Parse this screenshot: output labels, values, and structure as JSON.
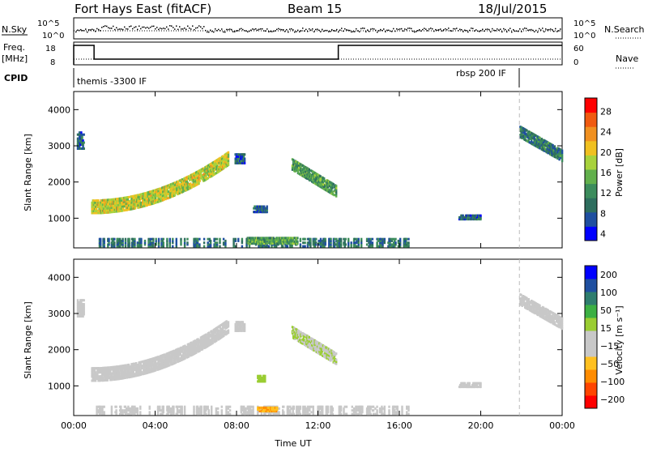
{
  "header": {
    "radar": "Fort Hays East (fitACF)",
    "beam": "Beam 15",
    "date": "18/Jul/2015"
  },
  "summary": {
    "nsky_label": "N.Sky",
    "nsearch_label": "N.Search",
    "freq_label_1": "Freq.",
    "freq_label_2": "[MHz]",
    "nave_label": "Nave",
    "cpid_label": "CPID",
    "noise_ticks": [
      "10^5",
      "10^0"
    ],
    "noise_right_ticks": [
      "10^5",
      "10^0"
    ],
    "freq_ticks": [
      "18",
      "8"
    ],
    "nave_ticks": [
      "60",
      "0"
    ],
    "cpid_segments": [
      {
        "label": "themis -3300 IF",
        "start": 0.0,
        "end": 21.9
      },
      {
        "label": "rbsp 200 IF",
        "start": 21.9,
        "end": 24.0
      }
    ]
  },
  "colors": {
    "power_scale": [
      "#0000ff",
      "#1f4fa0",
      "#2e6e5e",
      "#3c8c5c",
      "#62b04c",
      "#a8d23c",
      "#f0c020",
      "#f09020",
      "#f05a10",
      "#ff0000"
    ],
    "velocity_scale": [
      "#ff0000",
      "#ff4500",
      "#ff8c00",
      "#ffc020",
      "#c8c8c8",
      "#c8c8c8",
      "#9acd32",
      "#3cb043",
      "#2e7d6e",
      "#1f4fa0",
      "#0000ff"
    ]
  },
  "chart_data": [
    {
      "type": "heatmap",
      "name": "power",
      "ylabel": "Slant Range [km]",
      "xlabel": "",
      "colorbar_label": "Power [dB]",
      "colorbar_ticks": [
        "28",
        "24",
        "20",
        "16",
        "12",
        "8",
        "4"
      ],
      "yticks": [
        "4000",
        "3000",
        "2000",
        "1000"
      ],
      "ylim": [
        180,
        4500
      ],
      "xlim": [
        0,
        24
      ],
      "clim": [
        0,
        31
      ],
      "cpid_change_hour": 21.9,
      "regions": [
        {
          "t0": 0.15,
          "t1": 0.5,
          "r0": 2900,
          "r1": 3400,
          "value": 6
        },
        {
          "t0": 0.85,
          "t1": 7.6,
          "r0": 1150,
          "r1": 2800,
          "value": 18,
          "curve": "arc"
        },
        {
          "t0": 7.9,
          "t1": 8.4,
          "r0": 2500,
          "r1": 2800,
          "value": 5
        },
        {
          "t0": 8.8,
          "t1": 9.5,
          "r0": 1150,
          "r1": 1350,
          "value": 6
        },
        {
          "t0": 10.7,
          "t1": 12.9,
          "r0": 1500,
          "r1": 2500,
          "value": 12,
          "curve": "down"
        },
        {
          "t0": 18.9,
          "t1": 20.0,
          "r0": 950,
          "r1": 1100,
          "value": 6
        },
        {
          "t0": 21.9,
          "t1": 24.0,
          "r0": 2500,
          "r1": 3400,
          "value": 8,
          "curve": "down"
        },
        {
          "t0": 1.0,
          "t1": 16.5,
          "r0": 200,
          "r1": 450,
          "value": 7,
          "curve": "near"
        },
        {
          "t0": 8.5,
          "t1": 11.0,
          "r0": 280,
          "r1": 480,
          "value": 12
        }
      ]
    },
    {
      "type": "heatmap",
      "name": "velocity",
      "ylabel": "Slant Range [km]",
      "xlabel": "Time UT",
      "colorbar_label": "Velocity [m s⁻¹]",
      "colorbar_ticks": [
        "200",
        "100",
        "50",
        "15",
        "−15",
        "−50",
        "−100",
        "−200"
      ],
      "yticks": [
        "4000",
        "3000",
        "2000",
        "1000"
      ],
      "xticks": [
        "00:00",
        "04:00",
        "08:00",
        "12:00",
        "16:00",
        "20:00",
        "00:00"
      ],
      "ylim": [
        180,
        4500
      ],
      "xlim": [
        0,
        24
      ],
      "clim": [
        -250,
        250
      ],
      "cpid_change_hour": 21.9,
      "regions": [
        {
          "t0": 0.15,
          "t1": 0.5,
          "r0": 2900,
          "r1": 3400,
          "value": -10
        },
        {
          "t0": 0.85,
          "t1": 7.6,
          "r0": 1150,
          "r1": 2800,
          "value": 0,
          "curve": "arc"
        },
        {
          "t0": 7.9,
          "t1": 8.4,
          "r0": 2500,
          "r1": 2800,
          "value": 0
        },
        {
          "t0": 9.0,
          "t1": 9.4,
          "r0": 1100,
          "r1": 1300,
          "value": 55
        },
        {
          "t0": 10.7,
          "t1": 12.9,
          "r0": 1500,
          "r1": 2500,
          "value": 20,
          "curve": "down"
        },
        {
          "t0": 18.9,
          "t1": 20.0,
          "r0": 950,
          "r1": 1100,
          "value": 0
        },
        {
          "t0": 21.9,
          "t1": 24.0,
          "r0": 2500,
          "r1": 3400,
          "value": 0,
          "curve": "down"
        },
        {
          "t0": 1.0,
          "t1": 16.5,
          "r0": 200,
          "r1": 450,
          "value": -30,
          "curve": "near"
        },
        {
          "t0": 9.0,
          "t1": 10.0,
          "r0": 280,
          "r1": 420,
          "value": -120
        }
      ]
    }
  ]
}
